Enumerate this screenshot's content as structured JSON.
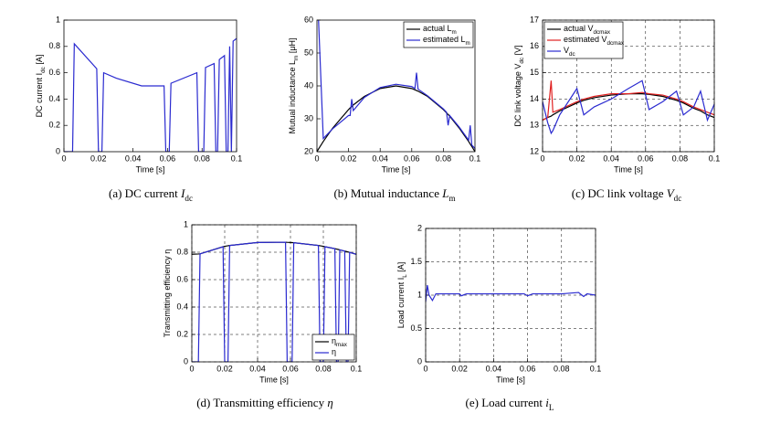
{
  "chart_data": [
    {
      "type": "line",
      "xlabel": "Time [s]",
      "ylabel": {
        "text": "DC current I",
        "sub": "dc",
        "after": " [A]"
      },
      "caption": {
        "text": "(a)  DC current ",
        "math": "I",
        "sub": "dc"
      },
      "xlim": [
        0,
        0.1
      ],
      "xticks": [
        0,
        0.02,
        0.04,
        0.06,
        0.08,
        0.1
      ],
      "ylim": [
        0,
        1
      ],
      "yticks": [
        0,
        0.2,
        0.4,
        0.6,
        0.8,
        1
      ],
      "grid": false,
      "x": [
        0,
        0.005,
        0.006,
        0.019,
        0.02,
        0.022,
        0.023,
        0.03,
        0.045,
        0.058,
        0.059,
        0.061,
        0.062,
        0.077,
        0.078,
        0.081,
        0.082,
        0.087,
        0.088,
        0.089,
        0.09,
        0.093,
        0.094,
        0.095,
        0.096,
        0.097,
        0.098,
        0.1
      ],
      "series": [
        {
          "name": null,
          "color": "#2a2ad0",
          "values": [
            0,
            0,
            0.82,
            0.63,
            0,
            0,
            0.6,
            0.56,
            0.5,
            0.5,
            0,
            0,
            0.52,
            0.6,
            0,
            0,
            0.64,
            0.67,
            0,
            0,
            0.7,
            0.73,
            0,
            0,
            0.8,
            0,
            0.84,
            0.86
          ]
        }
      ]
    },
    {
      "type": "line",
      "xlabel": "Time [s]",
      "ylabel": {
        "text": "Mutual inductance L",
        "sub": "m",
        "after": " [μH]"
      },
      "caption": {
        "text": "(b)  Mutual inductance ",
        "math": "L",
        "sub": "m"
      },
      "xlim": [
        0,
        0.1
      ],
      "xticks": [
        0,
        0.02,
        0.04,
        0.06,
        0.08,
        0.1
      ],
      "ylim": [
        20,
        60
      ],
      "yticks": [
        20,
        30,
        40,
        50,
        60
      ],
      "grid": false,
      "legend": "upper right",
      "x": [
        0,
        0.001,
        0.004,
        0.01,
        0.02,
        0.021,
        0.022,
        0.023,
        0.03,
        0.04,
        0.05,
        0.06,
        0.062,
        0.063,
        0.064,
        0.07,
        0.08,
        0.082,
        0.083,
        0.084,
        0.09,
        0.096,
        0.097,
        0.098,
        0.1
      ],
      "series": [
        {
          "name": "actual L",
          "sub": "m",
          "color": "#000000",
          "values": [
            20,
            20.8,
            23.1,
            27.2,
            32.8,
            33.3,
            33.7,
            34.2,
            36.8,
            39.2,
            40,
            39.2,
            38.8,
            38.6,
            38.4,
            36.8,
            32.8,
            31.8,
            31.3,
            30.8,
            27.2,
            23.1,
            22.3,
            21.6,
            20
          ]
        },
        {
          "name": "estimated L",
          "sub": "m",
          "color": "#2a2ad0",
          "values": [
            null,
            60,
            24,
            27,
            31,
            31,
            36,
            32.5,
            36.5,
            39.5,
            40.5,
            39.8,
            39.2,
            44,
            39,
            37,
            33,
            32,
            28,
            31,
            27.5,
            23.5,
            28,
            22,
            21
          ]
        }
      ]
    },
    {
      "type": "line",
      "xlabel": "Time [s]",
      "ylabel": {
        "text": "DC link voltage V",
        "sub": "dc",
        "after": " [V]"
      },
      "caption": {
        "text": "(c)  DC link voltage ",
        "math": "V",
        "sub": "dc"
      },
      "xlim": [
        0,
        0.1
      ],
      "xticks": [
        0,
        0.02,
        0.04,
        0.06,
        0.08,
        0.1
      ],
      "ylim": [
        12,
        17
      ],
      "yticks": [
        12,
        13,
        14,
        15,
        16,
        17
      ],
      "grid": true,
      "legend": "upper left",
      "x": [
        0,
        0.003,
        0.005,
        0.006,
        0.01,
        0.02,
        0.024,
        0.03,
        0.04,
        0.05,
        0.058,
        0.062,
        0.07,
        0.078,
        0.082,
        0.088,
        0.092,
        0.096,
        0.1
      ],
      "series": [
        {
          "name": "actual V",
          "sub": "dcmax",
          "color": "#000000",
          "values": [
            13.2,
            13.3,
            13.35,
            13.4,
            13.55,
            13.85,
            13.95,
            14.05,
            14.15,
            14.2,
            14.2,
            14.18,
            14.1,
            13.95,
            13.85,
            13.65,
            13.55,
            13.4,
            13.3
          ]
        },
        {
          "name": "estimated V",
          "sub": "dcmax",
          "color": "#e02020",
          "values": [
            13.2,
            13.3,
            14.7,
            13.5,
            13.6,
            13.9,
            14.0,
            14.1,
            14.2,
            14.2,
            14.25,
            14.2,
            14.15,
            14.0,
            13.9,
            13.7,
            13.6,
            13.5,
            13.4
          ]
        },
        {
          "name": "V",
          "sub": "dc",
          "color": "#2a2ad0",
          "values": [
            13.9,
            13.1,
            12.7,
            12.8,
            13.4,
            14.4,
            13.4,
            13.7,
            14.0,
            14.4,
            14.7,
            13.6,
            13.9,
            14.3,
            13.4,
            13.7,
            14.3,
            13.2,
            13.8
          ]
        }
      ]
    },
    {
      "type": "line",
      "xlabel": "Time [s]",
      "ylabel": {
        "text": "Transmitting efficiency η"
      },
      "caption": {
        "text": "(d)  Transmitting efficiency ",
        "math": "η"
      },
      "xlim": [
        0,
        0.1
      ],
      "xticks": [
        0,
        0.02,
        0.04,
        0.06,
        0.08,
        0.1
      ],
      "ylim": [
        0,
        1
      ],
      "yticks": [
        0,
        0.2,
        0.4,
        0.6,
        0.8,
        1
      ],
      "grid": true,
      "legend": "lower right",
      "x": [
        0,
        0.004,
        0.005,
        0.019,
        0.02,
        0.022,
        0.023,
        0.04,
        0.057,
        0.058,
        0.061,
        0.062,
        0.077,
        0.078,
        0.08,
        0.081,
        0.087,
        0.088,
        0.089,
        0.09,
        0.093,
        0.094,
        0.095,
        0.096,
        0.1
      ],
      "series": [
        {
          "name": "η",
          "sub": "max",
          "color": "#000000",
          "values": [
            0.785,
            0.787,
            0.788,
            0.84,
            0.843,
            0.847,
            0.849,
            0.871,
            0.873,
            0.872,
            0.87,
            0.869,
            0.849,
            0.847,
            0.843,
            0.84,
            0.826,
            0.823,
            0.82,
            0.817,
            0.808,
            0.805,
            0.802,
            0.799,
            0.785
          ]
        },
        {
          "name": "η",
          "color": "#2a2ad0",
          "values": [
            0,
            0,
            0.788,
            0.84,
            0,
            0,
            0.849,
            0.871,
            0.873,
            0,
            0,
            0.869,
            0.849,
            0,
            0,
            0.84,
            0.826,
            0,
            0,
            0.817,
            0.808,
            0,
            0,
            0.799,
            0.785
          ]
        }
      ]
    },
    {
      "type": "line",
      "xlabel": "Time [s]",
      "ylabel": {
        "text": "Load current I",
        "sub": "L",
        "after": " [A]"
      },
      "caption": {
        "text": "(e)  Load current ",
        "math": "i",
        "sub": "L"
      },
      "xlim": [
        0,
        0.1
      ],
      "xticks": [
        0,
        0.02,
        0.04,
        0.06,
        0.08,
        0.1
      ],
      "ylim": [
        0,
        2
      ],
      "yticks": [
        0,
        0.5,
        1,
        1.5,
        2
      ],
      "grid": true,
      "x": [
        0,
        0.001,
        0.002,
        0.004,
        0.006,
        0.02,
        0.021,
        0.024,
        0.03,
        0.058,
        0.06,
        0.063,
        0.08,
        0.085,
        0.09,
        0.093,
        0.095,
        0.1
      ],
      "series": [
        {
          "name": null,
          "color": "#2a2ad0",
          "values": [
            0.9,
            1.15,
            1.0,
            0.92,
            1.02,
            1.02,
            0.99,
            1.02,
            1.02,
            1.02,
            0.99,
            1.02,
            1.02,
            1.03,
            1.04,
            0.98,
            1.02,
            1.0
          ]
        }
      ]
    }
  ]
}
